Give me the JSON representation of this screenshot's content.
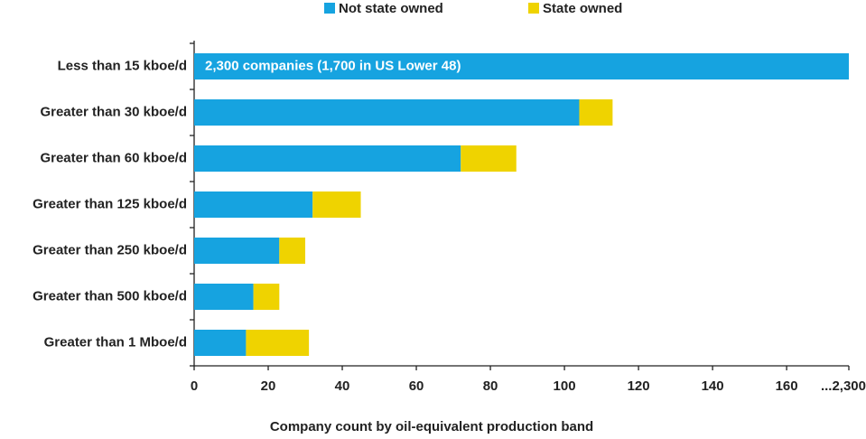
{
  "chart_data": {
    "type": "stacked-barh",
    "xlabel": "Company count by oil-equivalent production band",
    "annotation": "2,300 companies  (1,700 in US Lower 48)",
    "categories": [
      "Less than 15 kboe/d",
      "Greater than 30 kboe/d",
      "Greater than 60 kboe/d",
      "Greater than 125 kboe/d",
      "Greater than 250 kboe/d",
      "Greater than 500 kboe/d",
      "Greater than 1 Mboe/d"
    ],
    "series": [
      {
        "name": "Not state owned",
        "color": "#16a3e0",
        "values": [
          2300,
          104,
          72,
          32,
          23,
          16,
          14
        ]
      },
      {
        "name": "State owned",
        "color": "#efd300",
        "values": [
          null,
          9,
          15,
          13,
          7,
          7,
          17
        ]
      }
    ],
    "xlim": [
      0,
      2300
    ],
    "xticks": [
      0,
      20,
      40,
      60,
      80,
      100,
      120,
      140,
      160,
      {
        "value": 2300,
        "label": "...2,300"
      }
    ],
    "axis_break": true,
    "legend": "top"
  }
}
